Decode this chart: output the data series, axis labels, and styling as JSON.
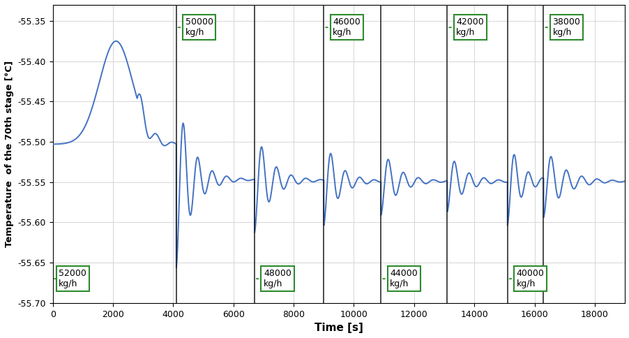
{
  "title": "",
  "xlabel": "Time [s]",
  "ylabel": "Temperature  of the 70th stage [°C]",
  "xlim": [
    0,
    19000
  ],
  "ylim": [
    -55.7,
    -55.33
  ],
  "yticks": [
    -55.35,
    -55.4,
    -55.45,
    -55.5,
    -55.55,
    -55.6,
    -55.65,
    -55.7
  ],
  "xticks": [
    0,
    2000,
    4000,
    6000,
    8000,
    10000,
    12000,
    14000,
    16000,
    18000
  ],
  "line_color": "#4472c4",
  "vline_color": "#1a1a1a",
  "vline_positions": [
    4100,
    6700,
    9000,
    10900,
    13100,
    15100,
    16300
  ],
  "annotation_box_color": "#ffffff",
  "annotation_edge_color": "#2e8b2e",
  "background_color": "#ffffff",
  "grid_color": "#d0d0d0",
  "top_annotations": [
    {
      "label": "50000\nkg/h",
      "vline": 4100,
      "side": "right"
    },
    {
      "label": "46000\nkg/h",
      "vline": 9000,
      "side": "right"
    },
    {
      "label": "42000\nkg/h",
      "vline": 13100,
      "side": "right"
    },
    {
      "label": "38000\nkg/h",
      "vline": 16300,
      "side": "right"
    }
  ],
  "bottom_annotations": [
    {
      "label": "52000\nkg/h",
      "vline": 0,
      "side": "right",
      "x": 200
    },
    {
      "label": "48000\nkg/h",
      "vline": 6700,
      "side": "right"
    },
    {
      "label": "44000\nkg/h",
      "vline": 10900,
      "side": "right"
    },
    {
      "label": "40000\nkg/h",
      "vline": 15100,
      "side": "right"
    }
  ]
}
